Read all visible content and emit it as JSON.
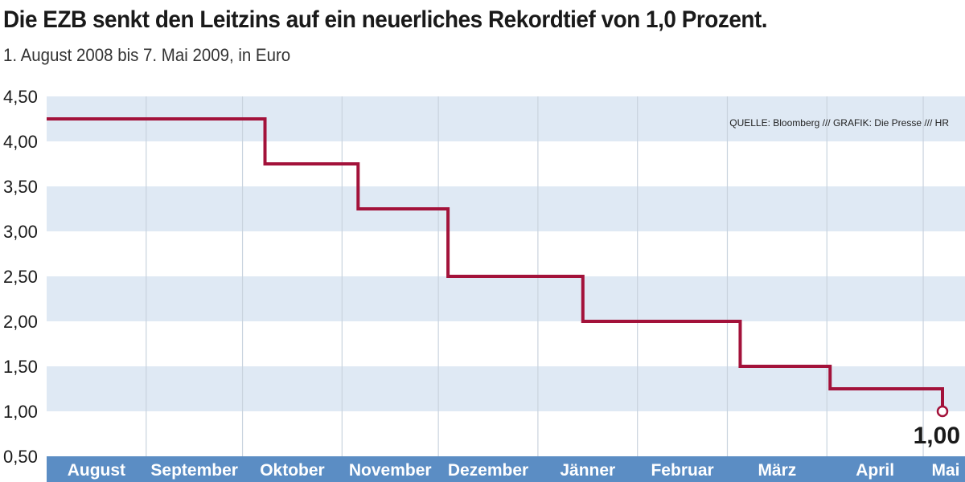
{
  "chart_data": {
    "type": "line",
    "step": true,
    "title": "Die EZB senkt den Leitzins auf ein neuerliches Rekordtief von 1,0 Prozent.",
    "subtitle": "1. August 2008 bis 7. Mai 2009, in Euro",
    "source": "QUELLE: Bloomberg /// GRAFIK: Die Presse /// HR",
    "ylim": [
      0.5,
      4.5
    ],
    "y_ticks": [
      "4,50",
      "4,00",
      "3,50",
      "3,00",
      "2,50",
      "2,00",
      "1,50",
      "1,00",
      "0,50"
    ],
    "y_tick_values": [
      4.5,
      4.0,
      3.5,
      3.0,
      2.5,
      2.0,
      1.5,
      1.0,
      0.5
    ],
    "xlim": [
      "2008-08-01",
      "2009-05-07"
    ],
    "x_month_labels": [
      "August",
      "September",
      "Oktober",
      "November",
      "Dezember",
      "Jänner",
      "Februar",
      "März",
      "April",
      "Mai"
    ],
    "x_month_starts": [
      "2008-08-01",
      "2008-09-01",
      "2008-10-01",
      "2008-11-01",
      "2008-12-01",
      "2009-01-01",
      "2009-02-01",
      "2009-03-01",
      "2009-04-01",
      "2009-05-01"
    ],
    "grid": true,
    "series": [
      {
        "color": "#a3123a",
        "points": [
          {
            "x": "2008-08-01",
            "y": 4.25
          },
          {
            "x": "2008-10-08",
            "y": 3.75
          },
          {
            "x": "2008-11-06",
            "y": 3.25
          },
          {
            "x": "2008-12-04",
            "y": 2.5
          },
          {
            "x": "2009-01-15",
            "y": 2.0
          },
          {
            "x": "2009-03-05",
            "y": 1.5
          },
          {
            "x": "2009-04-02",
            "y": 1.25
          },
          {
            "x": "2009-05-07",
            "y": 1.0
          }
        ]
      }
    ],
    "end_label": "1,00",
    "colors": {
      "band": "#dfe9f4",
      "axis_bar": "#5b8dc4",
      "line": "#a3123a"
    }
  }
}
